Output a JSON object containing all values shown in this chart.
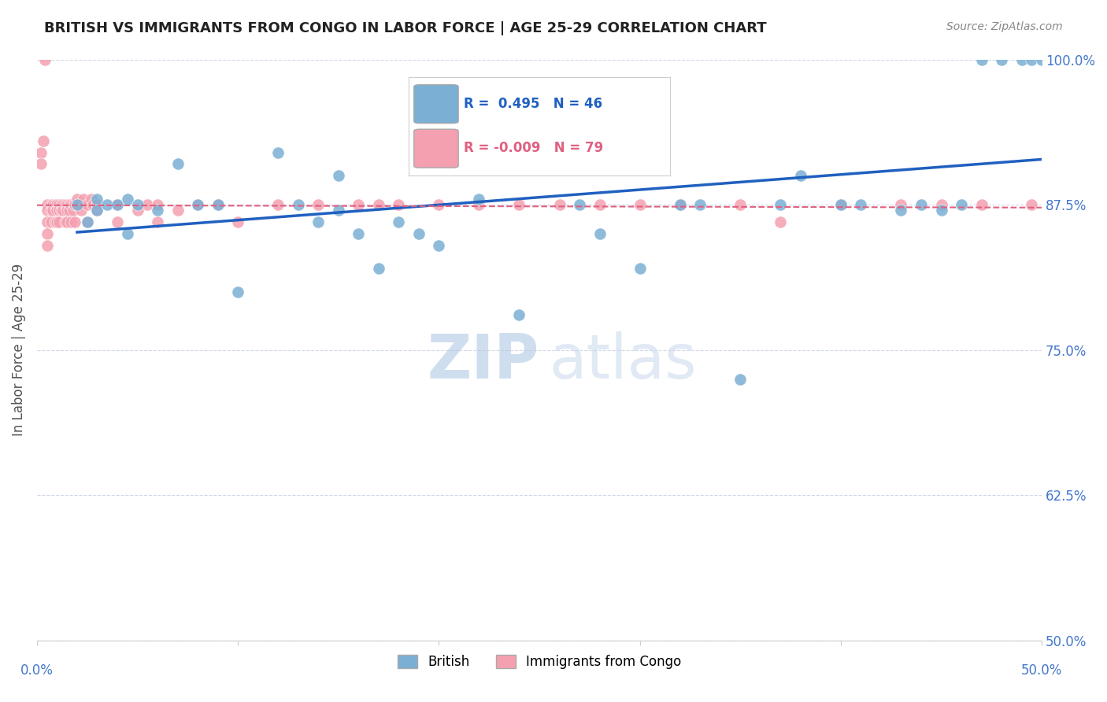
{
  "title": "BRITISH VS IMMIGRANTS FROM CONGO IN LABOR FORCE | AGE 25-29 CORRELATION CHART",
  "source": "Source: ZipAtlas.com",
  "ylabel": "In Labor Force | Age 25-29",
  "r_british": 0.495,
  "n_british": 46,
  "r_congo": -0.009,
  "n_congo": 79,
  "x_british": [
    0.02,
    0.025,
    0.03,
    0.03,
    0.035,
    0.04,
    0.045,
    0.045,
    0.05,
    0.06,
    0.07,
    0.08,
    0.09,
    0.1,
    0.12,
    0.13,
    0.14,
    0.15,
    0.15,
    0.16,
    0.17,
    0.18,
    0.19,
    0.2,
    0.22,
    0.24,
    0.25,
    0.27,
    0.28,
    0.3,
    0.32,
    0.33,
    0.35,
    0.37,
    0.38,
    0.4,
    0.41,
    0.43,
    0.44,
    0.45,
    0.46,
    0.47,
    0.48,
    0.49,
    0.495,
    0.5
  ],
  "y_british": [
    0.875,
    0.86,
    0.88,
    0.87,
    0.875,
    0.875,
    0.85,
    0.88,
    0.875,
    0.87,
    0.91,
    0.875,
    0.875,
    0.8,
    0.92,
    0.875,
    0.86,
    0.87,
    0.9,
    0.85,
    0.82,
    0.86,
    0.85,
    0.84,
    0.88,
    0.78,
    0.92,
    0.875,
    0.85,
    0.82,
    0.875,
    0.875,
    0.725,
    0.875,
    0.9,
    0.875,
    0.875,
    0.87,
    0.875,
    0.87,
    0.875,
    1.0,
    1.0,
    1.0,
    1.0,
    1.0
  ],
  "x_congo": [
    0.005,
    0.005,
    0.005,
    0.005,
    0.005,
    0.007,
    0.007,
    0.007,
    0.008,
    0.008,
    0.009,
    0.009,
    0.01,
    0.01,
    0.01,
    0.011,
    0.011,
    0.011,
    0.012,
    0.012,
    0.013,
    0.013,
    0.014,
    0.014,
    0.015,
    0.015,
    0.015,
    0.016,
    0.016,
    0.017,
    0.017,
    0.018,
    0.018,
    0.019,
    0.019,
    0.02,
    0.02,
    0.021,
    0.022,
    0.023,
    0.025,
    0.025,
    0.027,
    0.028,
    0.03,
    0.03,
    0.04,
    0.04,
    0.05,
    0.055,
    0.06,
    0.06,
    0.07,
    0.08,
    0.09,
    0.1,
    0.12,
    0.14,
    0.16,
    0.17,
    0.18,
    0.2,
    0.22,
    0.24,
    0.26,
    0.28,
    0.3,
    0.32,
    0.35,
    0.37,
    0.4,
    0.43,
    0.45,
    0.47,
    0.495,
    0.002,
    0.002,
    0.003,
    0.004
  ],
  "y_congo": [
    0.875,
    0.87,
    0.86,
    0.85,
    0.84,
    0.875,
    0.87,
    0.86,
    0.875,
    0.87,
    0.875,
    0.86,
    0.875,
    0.87,
    0.86,
    0.875,
    0.87,
    0.86,
    0.875,
    0.87,
    0.875,
    0.87,
    0.875,
    0.86,
    0.875,
    0.87,
    0.86,
    0.875,
    0.87,
    0.875,
    0.86,
    0.875,
    0.87,
    0.875,
    0.86,
    0.875,
    0.88,
    0.875,
    0.87,
    0.88,
    0.875,
    0.86,
    0.88,
    0.875,
    0.87,
    0.875,
    0.86,
    0.875,
    0.87,
    0.875,
    0.86,
    0.875,
    0.87,
    0.875,
    0.875,
    0.86,
    0.875,
    0.875,
    0.875,
    0.875,
    0.875,
    0.875,
    0.875,
    0.875,
    0.875,
    0.875,
    0.875,
    0.875,
    0.875,
    0.86,
    0.875,
    0.875,
    0.875,
    0.875,
    0.875,
    0.92,
    0.91,
    0.93,
    1.0
  ],
  "color_british": "#7bafd4",
  "color_congo": "#f4a0b0",
  "trendline_british_color": "#2060c0",
  "trendline_congo_color": "#e06080",
  "ytick_labels": [
    "50.0%",
    "62.5%",
    "75.0%",
    "87.5%",
    "100.0%"
  ],
  "ytick_values": [
    0.5,
    0.625,
    0.75,
    0.875,
    1.0
  ],
  "xlim": [
    0.0,
    0.5
  ],
  "ylim": [
    0.5,
    1.0
  ],
  "watermark_zip": "ZIP",
  "watermark_atlas": "atlas",
  "background_color": "#ffffff",
  "grid_color": "#d0d8e8",
  "title_color": "#222222",
  "axis_label_color": "#4477cc",
  "legend_r_british_color": "#2060c0",
  "legend_r_congo_color": "#e06080"
}
